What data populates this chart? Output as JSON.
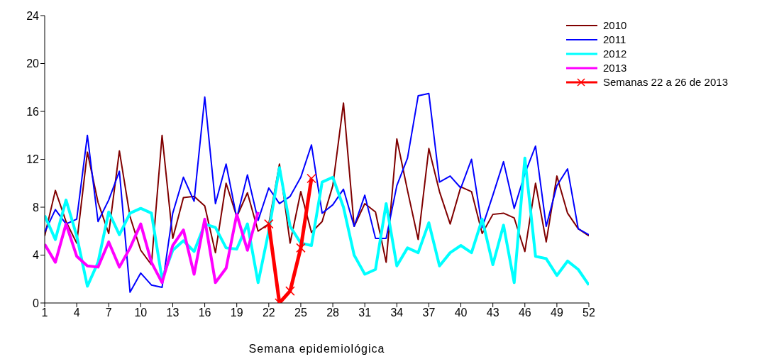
{
  "chart_data": {
    "type": "line",
    "xlabel": "Semana epidemiológica",
    "xlim": [
      1,
      52
    ],
    "xticks": [
      1,
      4,
      7,
      10,
      13,
      16,
      19,
      22,
      25,
      28,
      31,
      34,
      37,
      40,
      43,
      46,
      49,
      52
    ],
    "ylim": [
      0,
      24
    ],
    "yticks": [
      0,
      4,
      8,
      12,
      16,
      20,
      24
    ],
    "grid": false,
    "legend": "top right",
    "marker": "none",
    "line_style": "solid",
    "x": [
      1,
      2,
      3,
      4,
      5,
      6,
      7,
      8,
      9,
      10,
      11,
      12,
      13,
      14,
      15,
      16,
      17,
      18,
      19,
      20,
      21,
      22,
      23,
      24,
      25,
      26,
      27,
      28,
      29,
      30,
      31,
      32,
      33,
      34,
      35,
      36,
      37,
      38,
      39,
      40,
      41,
      42,
      43,
      44,
      45,
      46,
      47,
      48,
      49,
      50,
      51,
      52
    ],
    "series": [
      {
        "name": "2010",
        "color": "#800000",
        "values": [
          5.6,
          9.4,
          6.8,
          5.0,
          12.6,
          8.4,
          5.8,
          12.7,
          7.2,
          4.4,
          3.2,
          14.0,
          5.4,
          8.8,
          8.9,
          8.1,
          4.2,
          10.0,
          7.2,
          9.2,
          6.0,
          6.6,
          11.6,
          5.0,
          9.3,
          5.9,
          6.8,
          9.8,
          16.7,
          6.4,
          8.3,
          7.6,
          3.4,
          13.7,
          9.4,
          5.3,
          12.9,
          9.3,
          6.6,
          9.7,
          9.3,
          5.8,
          7.4,
          7.5,
          7.1,
          4.3,
          10.0,
          5.1,
          10.6,
          7.5,
          6.2,
          5.6
        ]
      },
      {
        "name": "2011",
        "color": "#0000ff",
        "values": [
          5.9,
          7.8,
          6.6,
          7.0,
          14.0,
          6.8,
          8.6,
          11.0,
          0.9,
          2.5,
          1.5,
          1.3,
          7.5,
          10.5,
          8.5,
          17.2,
          8.3,
          11.6,
          7.1,
          10.7,
          6.9,
          9.6,
          8.3,
          8.9,
          10.5,
          13.2,
          7.5,
          8.2,
          9.5,
          6.4,
          9.0,
          5.4,
          5.4,
          9.8,
          12.1,
          17.3,
          17.5,
          10.1,
          10.6,
          9.6,
          12.0,
          6.3,
          9.0,
          11.8,
          7.9,
          10.8,
          13.1,
          6.4,
          9.8,
          11.2,
          6.2,
          5.7
        ]
      },
      {
        "name": "2012",
        "color": "#00ffff",
        "values": [
          7.3,
          5.3,
          8.6,
          5.6,
          1.4,
          3.4,
          7.6,
          5.7,
          7.5,
          7.9,
          7.5,
          2.0,
          4.4,
          5.2,
          4.3,
          6.6,
          6.3,
          4.6,
          4.5,
          6.6,
          1.7,
          6.0,
          11.3,
          6.4,
          5.0,
          4.8,
          10.1,
          10.5,
          8.0,
          4.0,
          2.4,
          2.8,
          8.3,
          3.1,
          4.6,
          4.2,
          6.7,
          3.1,
          4.2,
          4.8,
          4.2,
          7.0,
          3.2,
          6.5,
          1.7,
          12.1,
          3.9,
          3.7,
          2.3,
          3.5,
          2.8,
          1.5
        ]
      },
      {
        "name": "2013",
        "color": "#ff00ff",
        "x": [
          1,
          2,
          3,
          4,
          5,
          6,
          7,
          8,
          9,
          10,
          11,
          12,
          13,
          14,
          15,
          16,
          17,
          18,
          19,
          20,
          21
        ],
        "values": [
          4.9,
          3.4,
          6.6,
          3.9,
          3.1,
          3.0,
          5.1,
          3.0,
          4.6,
          6.6,
          3.4,
          1.7,
          4.8,
          6.1,
          2.4,
          7.0,
          1.7,
          2.9,
          7.4,
          4.4,
          7.6
        ]
      },
      {
        "name": "Semanas 22 a 26 de 2013",
        "color": "#ff0000",
        "marker": "cross",
        "x": [
          22,
          23,
          24,
          25,
          26
        ],
        "values": [
          6.6,
          0,
          1.0,
          4.6,
          10.4
        ]
      }
    ]
  }
}
